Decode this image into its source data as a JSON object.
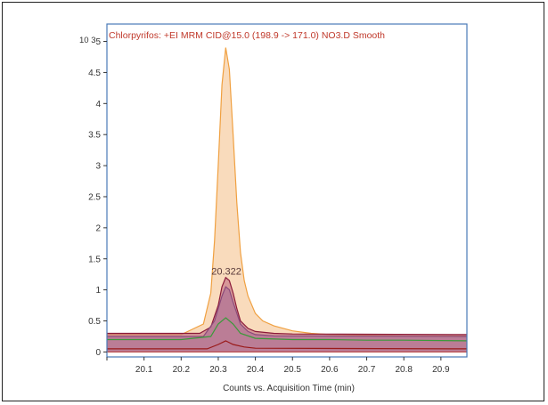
{
  "chart_data": {
    "type": "area",
    "title": "Chlorpyrifos: +EI MRM CID@15.0 (198.9 -> 171.0) NO3.D  Smooth",
    "xlabel": "Counts vs. Acquisition Time (min)",
    "ylabel": "",
    "y_multiplier_label": "10 3",
    "xlim": [
      20.0,
      20.97
    ],
    "ylim": [
      -0.08,
      5.28
    ],
    "x_ticks": [
      "20.1",
      "20.2",
      "20.3",
      "20.4",
      "20.5",
      "20.6",
      "20.7",
      "20.8",
      "20.9"
    ],
    "y_ticks": [
      "0",
      "0.5",
      "1",
      "1.5",
      "2",
      "2.5",
      "3",
      "3.5",
      "4",
      "4.5",
      "5"
    ],
    "peak_label": "20.322",
    "grid": false,
    "colors": {
      "title": "#c0392b",
      "axis_border": "#4a7ab8",
      "main_fill": "#f5c79a",
      "main_line": "#f0a040"
    },
    "series": [
      {
        "color": "#f0a040",
        "fill": "#f7cfa5",
        "x": [
          20.0,
          20.2,
          20.26,
          20.28,
          20.29,
          20.3,
          20.31,
          20.32,
          20.33,
          20.34,
          20.35,
          20.36,
          20.37,
          20.38,
          20.4,
          20.42,
          20.45,
          20.5,
          20.55,
          20.6,
          20.7,
          20.8,
          20.97
        ],
        "values": [
          0.28,
          0.28,
          0.45,
          0.95,
          1.8,
          3.0,
          4.3,
          4.9,
          4.55,
          3.5,
          2.4,
          1.6,
          1.15,
          0.9,
          0.62,
          0.5,
          0.42,
          0.34,
          0.3,
          0.28,
          0.27,
          0.26,
          0.26
        ]
      },
      {
        "color": "#8b1a3a",
        "fill": "#c06a80",
        "x": [
          20.0,
          20.25,
          20.28,
          20.3,
          20.31,
          20.32,
          20.33,
          20.34,
          20.35,
          20.36,
          20.38,
          20.4,
          20.45,
          20.5,
          20.97
        ],
        "values": [
          0.3,
          0.3,
          0.4,
          0.75,
          1.05,
          1.2,
          1.15,
          0.95,
          0.7,
          0.5,
          0.38,
          0.33,
          0.3,
          0.29,
          0.28
        ]
      },
      {
        "color": "#8a4a7a",
        "fill": "#a86a95",
        "x": [
          20.0,
          20.26,
          20.29,
          20.31,
          20.32,
          20.33,
          20.34,
          20.36,
          20.38,
          20.4,
          20.45,
          20.97
        ],
        "values": [
          0.25,
          0.25,
          0.5,
          0.9,
          1.05,
          1.0,
          0.8,
          0.45,
          0.33,
          0.28,
          0.26,
          0.25
        ]
      },
      {
        "color": "#3a9a3a",
        "fill": "none",
        "x": [
          20.0,
          20.2,
          20.28,
          20.3,
          20.32,
          20.34,
          20.36,
          20.4,
          20.5,
          20.6,
          20.7,
          20.8,
          20.97
        ],
        "values": [
          0.2,
          0.2,
          0.25,
          0.45,
          0.55,
          0.45,
          0.3,
          0.22,
          0.2,
          0.2,
          0.19,
          0.19,
          0.18
        ]
      },
      {
        "color": "#9a1a1a",
        "fill": "none",
        "x": [
          20.0,
          20.27,
          20.3,
          20.32,
          20.34,
          20.37,
          20.4,
          20.97
        ],
        "values": [
          0.05,
          0.05,
          0.12,
          0.18,
          0.12,
          0.08,
          0.06,
          0.05
        ]
      }
    ]
  }
}
